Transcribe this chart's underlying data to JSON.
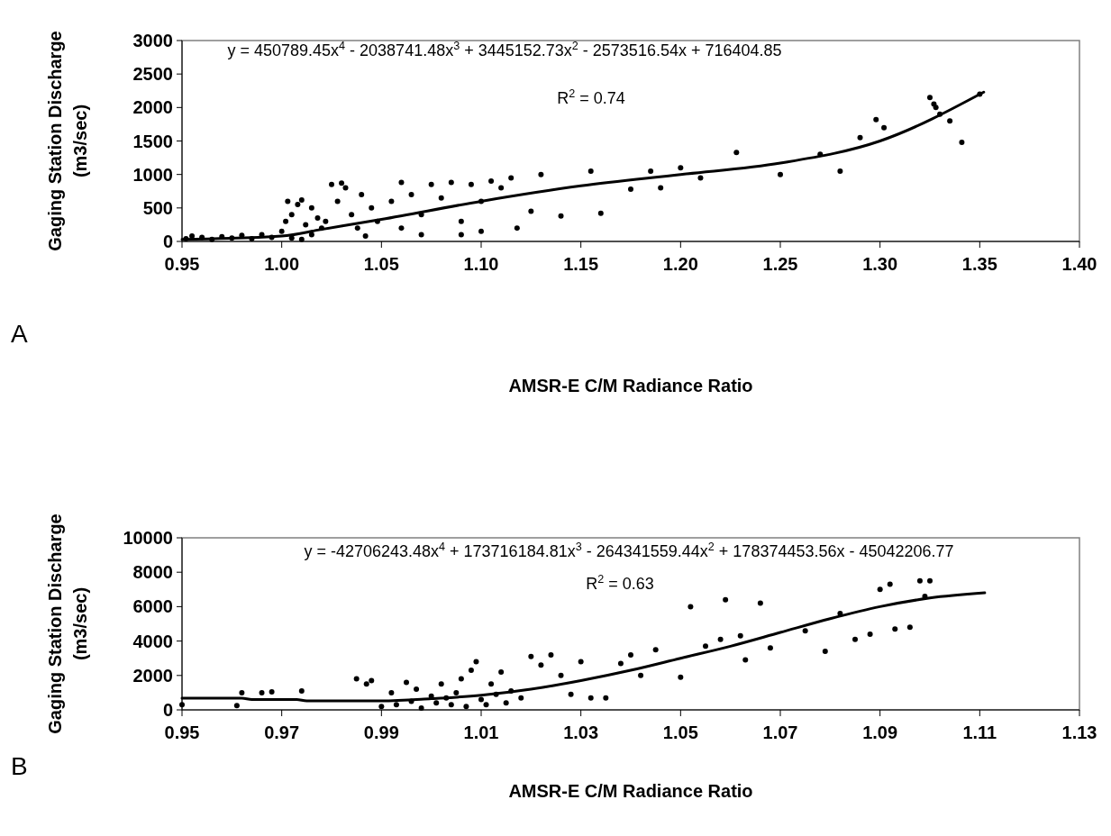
{
  "chart_data": [
    {
      "type": "scatter",
      "xlabel": "AMSR-E C/M Radiance Ratio",
      "ylabel": "Gaging Station Discharge (m3/sec)",
      "grid": false,
      "xlim": [
        0.95,
        1.4
      ],
      "xticks": [
        {
          "value": 0.95,
          "label": "0.95"
        },
        {
          "value": 1.0,
          "label": "1.00"
        },
        {
          "value": 1.05,
          "label": "1.05"
        },
        {
          "value": 1.1,
          "label": "1.10"
        },
        {
          "value": 1.15,
          "label": "1.15"
        },
        {
          "value": 1.2,
          "label": "1.20"
        },
        {
          "value": 1.25,
          "label": "1.25"
        },
        {
          "value": 1.3,
          "label": "1.30"
        },
        {
          "value": 1.35,
          "label": "1.35"
        },
        {
          "value": 1.4,
          "label": "1.40"
        }
      ],
      "ylim": [
        0,
        3000
      ],
      "yticks": [
        0,
        500,
        1000,
        1500,
        2000,
        2500,
        3000
      ],
      "annotations": [
        "y = 450789.45x$^{4}$ - 2038741.48x$^{3}$ + 3445152.73x$^{2}$ - 2573516.54x + 716404.85",
        "R$^{2}$ = 0.74",
        "A"
      ],
      "series": [
        {
          "color": "#000000",
          "marker": "circle",
          "x": [
            0.952,
            0.955,
            0.96,
            0.965,
            0.97,
            0.975,
            0.98,
            0.985,
            0.99,
            0.995,
            1.0,
            1.002,
            1.005,
            1.008,
            1.01,
            1.012,
            1.015,
            1.005,
            1.01,
            1.018,
            1.02,
            1.015,
            1.003,
            1.025,
            1.03,
            1.032,
            1.028,
            1.035,
            1.04,
            1.045,
            1.022,
            1.038,
            1.042,
            1.048,
            1.055,
            1.06,
            1.065,
            1.07,
            1.075,
            1.08,
            1.085,
            1.09,
            1.095,
            1.1,
            1.105,
            1.11,
            1.115,
            1.118,
            1.1,
            1.07,
            1.06,
            1.09,
            1.125,
            1.13,
            1.14,
            1.155,
            1.16,
            1.175,
            1.185,
            1.19,
            1.2,
            1.21,
            1.228,
            1.25,
            1.27,
            1.28,
            1.29,
            1.298,
            1.302,
            1.325,
            1.327,
            1.328,
            1.33,
            1.335,
            1.341,
            1.35
          ],
          "values": [
            40,
            80,
            60,
            30,
            70,
            50,
            90,
            40,
            100,
            60,
            150,
            300,
            400,
            550,
            620,
            250,
            100,
            50,
            30,
            350,
            200,
            500,
            600,
            850,
            870,
            800,
            600,
            400,
            700,
            500,
            300,
            200,
            80,
            300,
            600,
            880,
            700,
            400,
            850,
            650,
            880,
            300,
            850,
            600,
            900,
            800,
            950,
            200,
            150,
            100,
            200,
            100,
            450,
            1000,
            380,
            1050,
            420,
            780,
            1050,
            800,
            1100,
            950,
            1330,
            1000,
            1300,
            1050,
            1550,
            1820,
            1700,
            2150,
            2050,
            2000,
            1900,
            1800,
            1480,
            2200
          ]
        },
        {
          "type": "line",
          "color": "#000000",
          "x": [
            0.95,
            1.0,
            1.02,
            1.05,
            1.1,
            1.15,
            1.2,
            1.25,
            1.3,
            1.352
          ],
          "values": [
            30,
            80,
            180,
            330,
            600,
            830,
            1000,
            1170,
            1500,
            2230
          ]
        }
      ]
    },
    {
      "type": "scatter",
      "xlabel": "AMSR-E C/M Radiance Ratio",
      "ylabel": "Gaging Station Discharge (m3/sec)",
      "grid": false,
      "xlim": [
        0.95,
        1.13
      ],
      "xticks": [
        {
          "value": 0.95,
          "label": "0.95"
        },
        {
          "value": 0.97,
          "label": "0.97"
        },
        {
          "value": 0.99,
          "label": "0.99"
        },
        {
          "value": 1.01,
          "label": "1.01"
        },
        {
          "value": 1.03,
          "label": "1.03"
        },
        {
          "value": 1.05,
          "label": "1.05"
        },
        {
          "value": 1.07,
          "label": "1.07"
        },
        {
          "value": 1.09,
          "label": "1.09"
        },
        {
          "value": 1.11,
          "label": "1.11"
        },
        {
          "value": 1.13,
          "label": "1.13"
        }
      ],
      "ylim": [
        0,
        10000
      ],
      "yticks": [
        0,
        2000,
        4000,
        6000,
        8000,
        10000
      ],
      "annotations": [
        "y = -42706243.48x$^{4}$ + 173716184.81x$^{3}$ - 264341559.44x$^{2}$ + 178374453.56x - 45042206.77",
        "R$^{2}$ = 0.63",
        "B"
      ],
      "series": [
        {
          "color": "#000000",
          "marker": "circle",
          "x": [
            0.95,
            0.961,
            0.962,
            0.966,
            0.968,
            0.974,
            0.985,
            0.987,
            0.988,
            0.99,
            0.992,
            0.995,
            0.997,
            1.0,
            1.002,
            1.004,
            1.005,
            1.006,
            1.008,
            1.009,
            1.01,
            1.012,
            1.014,
            1.016,
            1.018,
            1.02,
            1.022,
            1.024,
            1.026,
            1.028,
            1.03,
            1.032,
            1.035,
            1.038,
            1.04,
            1.042,
            1.045,
            1.05,
            1.052,
            1.055,
            1.058,
            1.059,
            1.062,
            1.063,
            1.066,
            1.068,
            1.075,
            1.079,
            1.082,
            1.085,
            1.088,
            1.09,
            1.092,
            1.093,
            1.096,
            1.098,
            1.099,
            1.1,
            0.993,
            0.996,
            0.998,
            1.001,
            1.003,
            1.007,
            1.011,
            1.013,
            1.015
          ],
          "values": [
            300,
            250,
            1000,
            1000,
            1050,
            1100,
            1800,
            1500,
            1700,
            200,
            1000,
            1600,
            1200,
            800,
            1500,
            300,
            1000,
            1800,
            2300,
            2800,
            600,
            1500,
            2200,
            1100,
            700,
            3100,
            2600,
            3200,
            2000,
            900,
            2800,
            700,
            700,
            2700,
            3200,
            2000,
            3500,
            1900,
            6000,
            3700,
            4100,
            6400,
            4300,
            2900,
            6200,
            3600,
            4600,
            3400,
            5600,
            4100,
            4400,
            7000,
            7300,
            4700,
            4800,
            7500,
            6600,
            7500,
            300,
            500,
            100,
            400,
            700,
            200,
            300,
            900,
            400
          ]
        },
        {
          "type": "line",
          "color": "#000000",
          "x": [
            0.95,
            0.962,
            0.964,
            0.973,
            0.975,
            0.99,
            1.0,
            1.01,
            1.02,
            1.03,
            1.04,
            1.05,
            1.06,
            1.07,
            1.08,
            1.09,
            1.1,
            1.111
          ],
          "values": [
            680,
            680,
            600,
            600,
            520,
            520,
            650,
            850,
            1200,
            1700,
            2300,
            3000,
            3700,
            4500,
            5300,
            6000,
            6500,
            6800
          ]
        }
      ]
    }
  ]
}
